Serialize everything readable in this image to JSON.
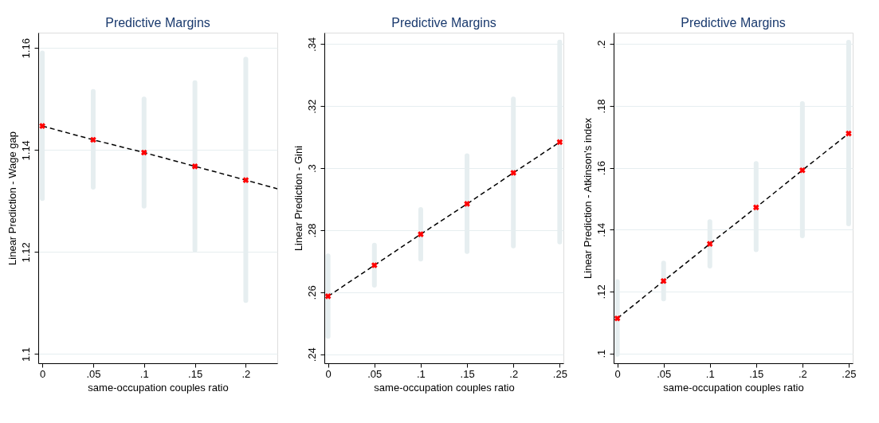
{
  "chart_data": [
    {
      "type": "line",
      "title": "Predictive Margins",
      "xlabel": "same-occupation couples ratio",
      "ylabel": "Linear Prediction - Wage gap",
      "xlim": [
        -0.004,
        0.231
      ],
      "ylim": [
        1.0982,
        1.163
      ],
      "xticks": [
        0,
        {
          "value": 0.05,
          "label": ".05"
        },
        {
          "value": 0.1,
          "label": ".1"
        },
        {
          "value": 0.15,
          "label": ".15"
        },
        {
          "value": 0.2,
          "label": ".2"
        }
      ],
      "yticks": [
        1.1,
        1.12,
        1.14,
        1.16
      ],
      "grid": "y",
      "series": [
        {
          "type": "line",
          "line_style": "dashed",
          "color": "#000000",
          "x": [
            0,
            0.05,
            0.1,
            0.15,
            0.2,
            0.231
          ],
          "values": [
            1.1447,
            1.142,
            1.1395,
            1.1368,
            1.1341,
            1.1324
          ]
        },
        {
          "type": "scatter",
          "marker": "cross",
          "color": "#ff0000",
          "x": [
            0,
            0.05,
            0.1,
            0.15,
            0.2
          ],
          "values": [
            1.1447,
            1.142,
            1.1395,
            1.1368,
            1.1341
          ],
          "errors": [
            [
              1.1305,
              1.159
            ],
            [
              1.1327,
              1.1515
            ],
            [
              1.129,
              1.15
            ],
            [
              1.1204,
              1.1532
            ],
            [
              1.1105,
              1.1578
            ]
          ]
        }
      ]
    },
    {
      "type": "line",
      "title": "Predictive Margins",
      "xlabel": "same-occupation couples ratio",
      "ylabel": "Linear Prediction - Gini",
      "xlim": [
        -0.004,
        0.254
      ],
      "ylim": [
        0.2371,
        0.3437
      ],
      "xticks": [
        0,
        {
          "value": 0.05,
          "label": ".05"
        },
        {
          "value": 0.1,
          "label": ".1"
        },
        {
          "value": 0.15,
          "label": ".15"
        },
        {
          "value": 0.2,
          "label": ".2"
        },
        {
          "value": 0.25,
          "label": ".25"
        }
      ],
      "yticks": [
        {
          "value": 0.24,
          "label": ".24"
        },
        {
          "value": 0.26,
          "label": ".26"
        },
        {
          "value": 0.28,
          "label": ".28"
        },
        {
          "value": 0.3,
          "label": ".3"
        },
        {
          "value": 0.32,
          "label": ".32"
        },
        {
          "value": 0.34,
          "label": ".34"
        }
      ],
      "grid": "y",
      "series": [
        {
          "type": "line",
          "line_style": "dashed",
          "color": "#000000",
          "x": [
            0,
            0.05,
            0.1,
            0.15,
            0.2,
            0.25
          ],
          "values": [
            0.2587,
            0.2687,
            0.2787,
            0.2885,
            0.2985,
            0.3084
          ]
        },
        {
          "type": "scatter",
          "marker": "cross",
          "color": "#ff0000",
          "x": [
            0,
            0.05,
            0.1,
            0.15,
            0.2,
            0.25
          ],
          "values": [
            0.2587,
            0.2687,
            0.2787,
            0.2885,
            0.2985,
            0.3084
          ],
          "errors": [
            [
              0.2458,
              0.2717
            ],
            [
              0.2623,
              0.2752
            ],
            [
              0.2707,
              0.2867
            ],
            [
              0.2731,
              0.304
            ],
            [
              0.2749,
              0.3223
            ],
            [
              0.2762,
              0.3407
            ]
          ]
        }
      ]
    },
    {
      "type": "line",
      "title": "Predictive Margins",
      "xlabel": "same-occupation couples ratio",
      "ylabel": "Linear Prediction - Atkinson's index",
      "xlim": [
        -0.004,
        0.2544
      ],
      "ylim": [
        0.0968,
        0.2037
      ],
      "xticks": [
        0,
        {
          "value": 0.05,
          "label": ".05"
        },
        {
          "value": 0.1,
          "label": ".1"
        },
        {
          "value": 0.15,
          "label": ".15"
        },
        {
          "value": 0.2,
          "label": ".2"
        },
        {
          "value": 0.25,
          "label": ".25"
        }
      ],
      "yticks": [
        {
          "value": 0.1,
          "label": ".1"
        },
        {
          "value": 0.12,
          "label": ".12"
        },
        {
          "value": 0.14,
          "label": ".14"
        },
        {
          "value": 0.16,
          "label": ".16"
        },
        {
          "value": 0.18,
          "label": ".18"
        },
        {
          "value": 0.2,
          "label": ".2"
        }
      ],
      "grid": "y",
      "series": [
        {
          "type": "line",
          "line_style": "dashed",
          "color": "#000000",
          "x": [
            0,
            0.05,
            0.1,
            0.15,
            0.2,
            0.25
          ],
          "values": [
            0.1113,
            0.1234,
            0.1354,
            0.1472,
            0.1592,
            0.1711
          ]
        },
        {
          "type": "scatter",
          "marker": "cross",
          "color": "#ff0000",
          "x": [
            0,
            0.05,
            0.1,
            0.15,
            0.2,
            0.25
          ],
          "values": [
            0.1113,
            0.1234,
            0.1354,
            0.1472,
            0.1592,
            0.1711
          ],
          "errors": [
            [
              0.0997,
              0.1232
            ],
            [
              0.1176,
              0.1292
            ],
            [
              0.1282,
              0.1426
            ],
            [
              0.1335,
              0.1614
            ],
            [
              0.138,
              0.1808
            ],
            [
              0.1419,
              0.2006
            ]
          ]
        }
      ]
    }
  ]
}
